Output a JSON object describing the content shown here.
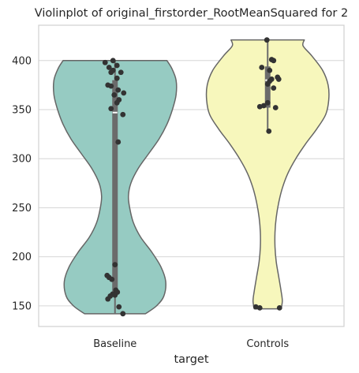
{
  "chart_data": {
    "type": "violin",
    "title": "Violinplot of original_firstorder_RootMeanSquared for 2",
    "xlabel": "target",
    "ylabel": "",
    "ylim": [
      129,
      436
    ],
    "yticks": [
      150,
      200,
      250,
      300,
      350,
      400
    ],
    "grid": true,
    "colors": {
      "Baseline": "#96cbc2",
      "Controls": "#f7f7bc",
      "outline": "#666666",
      "box": "#6b6b6b",
      "points": "#333333",
      "grid": "#d6d6d6"
    },
    "categories": [
      "Baseline",
      "Controls"
    ],
    "series": [
      {
        "category": "Baseline",
        "min": 142,
        "q1": 161,
        "median": 347,
        "q3": 380,
        "max": 400,
        "whisker_low": 142,
        "whisker_high": 400,
        "density": [
          [
            142,
            0.5
          ],
          [
            150,
            0.68
          ],
          [
            160,
            0.8
          ],
          [
            175,
            0.83
          ],
          [
            190,
            0.75
          ],
          [
            205,
            0.6
          ],
          [
            220,
            0.42
          ],
          [
            235,
            0.3
          ],
          [
            250,
            0.24
          ],
          [
            262,
            0.22
          ],
          [
            275,
            0.26
          ],
          [
            290,
            0.38
          ],
          [
            305,
            0.55
          ],
          [
            320,
            0.72
          ],
          [
            335,
            0.85
          ],
          [
            350,
            0.94
          ],
          [
            365,
            1.0
          ],
          [
            380,
            1.0
          ],
          [
            392,
            0.93
          ],
          [
            400,
            0.85
          ]
        ],
        "points": [
          [
            -0.05,
            400
          ],
          [
            -0.25,
            398
          ],
          [
            0.05,
            395
          ],
          [
            -0.15,
            393
          ],
          [
            -0.05,
            390
          ],
          [
            -0.1,
            388
          ],
          [
            0.15,
            388
          ],
          [
            0.05,
            382
          ],
          [
            -0.18,
            375
          ],
          [
            -0.1,
            374
          ],
          [
            0.08,
            370
          ],
          [
            0.22,
            367
          ],
          [
            -0.02,
            365
          ],
          [
            0.1,
            360
          ],
          [
            0.05,
            357
          ],
          [
            -0.1,
            351
          ],
          [
            0.2,
            345
          ],
          [
            0.08,
            317
          ],
          [
            0.0,
            192
          ],
          [
            -0.2,
            181
          ],
          [
            -0.15,
            179
          ],
          [
            -0.08,
            177
          ],
          [
            0.02,
            166
          ],
          [
            0.06,
            164
          ],
          [
            -0.06,
            162
          ],
          [
            0.0,
            161
          ],
          [
            -0.12,
            160
          ],
          [
            -0.18,
            157
          ],
          [
            0.1,
            149
          ],
          [
            0.2,
            142
          ]
        ]
      },
      {
        "category": "Controls",
        "min": 147,
        "q1": 352,
        "median": 380,
        "q3": 394,
        "max": 421,
        "whisker_low": 328,
        "whisker_high": 421,
        "density": [
          [
            147,
            0.22
          ],
          [
            155,
            0.24
          ],
          [
            165,
            0.22
          ],
          [
            180,
            0.18
          ],
          [
            195,
            0.14
          ],
          [
            210,
            0.12
          ],
          [
            225,
            0.12
          ],
          [
            240,
            0.14
          ],
          [
            255,
            0.18
          ],
          [
            270,
            0.24
          ],
          [
            285,
            0.33
          ],
          [
            300,
            0.46
          ],
          [
            315,
            0.62
          ],
          [
            330,
            0.8
          ],
          [
            345,
            0.95
          ],
          [
            360,
            1.0
          ],
          [
            375,
            0.99
          ],
          [
            390,
            0.9
          ],
          [
            405,
            0.72
          ],
          [
            415,
            0.58
          ],
          [
            421,
            0.6
          ]
        ],
        "points": [
          [
            -0.02,
            421
          ],
          [
            0.1,
            401
          ],
          [
            0.15,
            400
          ],
          [
            0.05,
            390
          ],
          [
            -0.15,
            393
          ],
          [
            0.25,
            383
          ],
          [
            0.1,
            381
          ],
          [
            0.28,
            381
          ],
          [
            0.05,
            379
          ],
          [
            0.0,
            376
          ],
          [
            0.15,
            372
          ],
          [
            0.0,
            357
          ],
          [
            -0.1,
            354
          ],
          [
            -0.2,
            353
          ],
          [
            0.2,
            352
          ],
          [
            0.03,
            328
          ],
          [
            -0.3,
            149
          ],
          [
            -0.2,
            148
          ],
          [
            0.3,
            148
          ]
        ]
      }
    ]
  }
}
